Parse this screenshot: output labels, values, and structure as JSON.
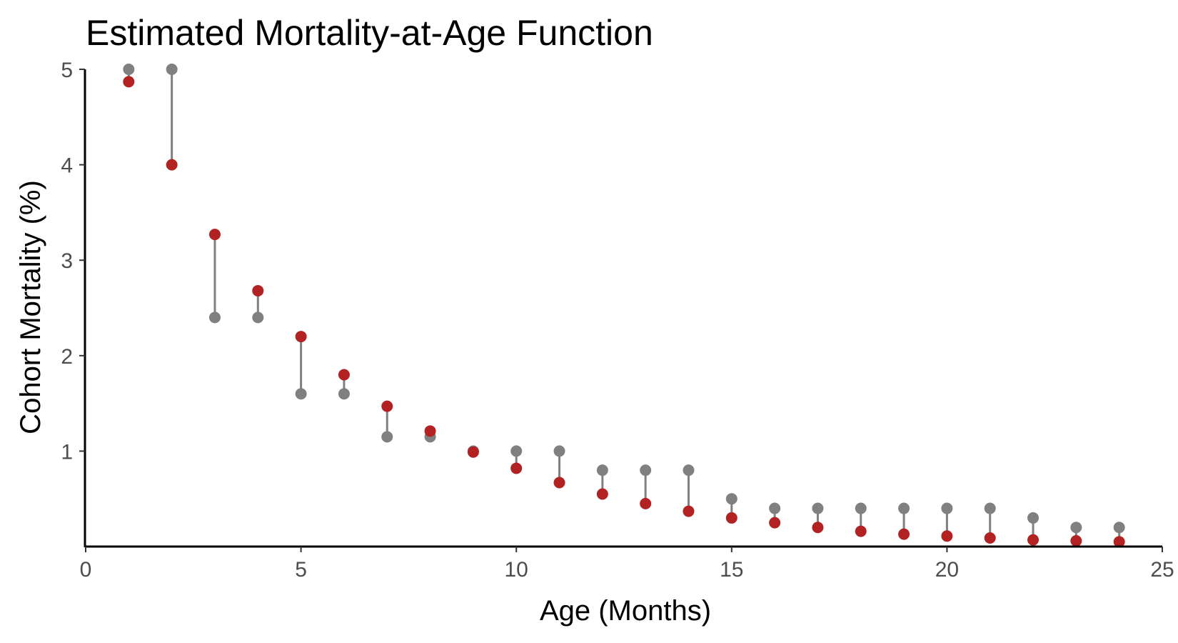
{
  "chart_data": {
    "type": "scatter",
    "title": "Estimated Mortality-at-Age Function",
    "xlabel": "Age (Months)",
    "ylabel": "Cohort Mortality (%)",
    "xlim": [
      0,
      25
    ],
    "ylim": [
      0.05,
      5
    ],
    "x_ticks": [
      0,
      5,
      10,
      15,
      20,
      25
    ],
    "y_ticks": [
      1,
      2,
      3,
      4,
      5
    ],
    "grid": false,
    "legend": "none",
    "x": [
      1,
      2,
      3,
      4,
      5,
      6,
      7,
      8,
      9,
      10,
      11,
      12,
      13,
      14,
      15,
      16,
      17,
      18,
      19,
      20,
      21,
      22,
      23,
      24
    ],
    "series": [
      {
        "color": "#808080",
        "values": [
          5.0,
          5.0,
          2.4,
          2.4,
          1.6,
          1.6,
          1.15,
          1.15,
          1.0,
          1.0,
          1.0,
          0.8,
          0.8,
          0.8,
          0.5,
          0.4,
          0.4,
          0.4,
          0.4,
          0.4,
          0.4,
          0.3,
          0.2,
          0.2
        ]
      },
      {
        "color": "#b22222",
        "values": [
          4.87,
          4.0,
          3.27,
          2.68,
          2.2,
          1.8,
          1.47,
          1.21,
          0.99,
          0.82,
          0.67,
          0.55,
          0.45,
          0.37,
          0.3,
          0.25,
          0.2,
          0.16,
          0.13,
          0.11,
          0.09,
          0.07,
          0.06,
          0.05
        ]
      }
    ],
    "connector_color": "#808080"
  }
}
